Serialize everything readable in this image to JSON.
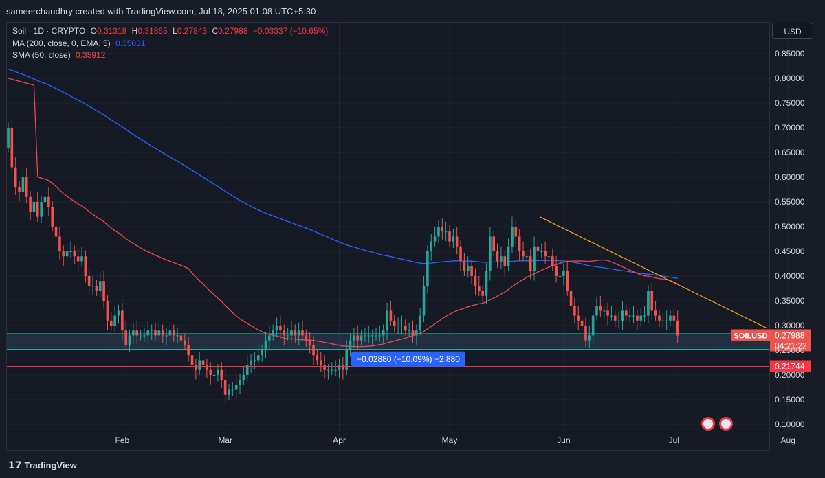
{
  "header": {
    "attribution": "sameerchaudhry created with TradingView.com, Jul 18, 2025 01:08 UTC+5:30"
  },
  "legend": {
    "symbol": "Soil · 1D · CRYPTO",
    "open_label": "O",
    "open": "0.31318",
    "high_label": "H",
    "high": "0.31865",
    "low_label": "L",
    "low": "0.27843",
    "close_label": "C",
    "close": "0.27988",
    "change": "−0.03337 (−10.65%)",
    "ma_label": "MA (200, close, 0, EMA, 5)",
    "ma_value": "0.35031",
    "sma_label": "SMA (50, close)",
    "sma_value": "0.35912"
  },
  "currency_button": "USD",
  "footer": {
    "brand": "TradingView",
    "brand_glyph": "17"
  },
  "chart_data": {
    "type": "candlestick",
    "symbol": "SOILUSD",
    "x_tick_labels": [
      "Feb",
      "Mar",
      "Apr",
      "May",
      "Jun",
      "Jul",
      "Aug"
    ],
    "y_tick_labels": [
      "0.10000",
      "0.15000",
      "0.20000",
      "0.25000",
      "0.30000",
      "0.35000",
      "0.40000",
      "0.45000",
      "0.50000",
      "0.55000",
      "0.60000",
      "0.65000",
      "0.70000",
      "0.75000",
      "0.80000",
      "0.85000"
    ],
    "ylim": [
      0.07,
      0.89
    ],
    "start_date": "2025-01-01",
    "last_price": 0.27988,
    "last_price_label": "0.27988",
    "countdown": "04:21:22",
    "support_line": 0.21744,
    "support_label": "0.21744",
    "zone": [
      0.252,
      0.2835
    ],
    "measure_label": "−0.02880 (−10.09%) −2,880",
    "closes": [
      0.7,
      0.62,
      0.58,
      0.57,
      0.6,
      0.56,
      0.53,
      0.55,
      0.52,
      0.55,
      0.56,
      0.54,
      0.5,
      0.48,
      0.45,
      0.44,
      0.45,
      0.45,
      0.44,
      0.43,
      0.44,
      0.4,
      0.38,
      0.38,
      0.37,
      0.39,
      0.35,
      0.31,
      0.3,
      0.32,
      0.33,
      0.29,
      0.26,
      0.28,
      0.29,
      0.28,
      0.28,
      0.28,
      0.29,
      0.29,
      0.28,
      0.29,
      0.28,
      0.28,
      0.29,
      0.28,
      0.28,
      0.27,
      0.26,
      0.24,
      0.22,
      0.21,
      0.23,
      0.22,
      0.21,
      0.2,
      0.2,
      0.21,
      0.19,
      0.16,
      0.17,
      0.17,
      0.18,
      0.19,
      0.2,
      0.22,
      0.23,
      0.23,
      0.24,
      0.25,
      0.27,
      0.28,
      0.29,
      0.3,
      0.29,
      0.28,
      0.28,
      0.29,
      0.28,
      0.29,
      0.28,
      0.27,
      0.26,
      0.24,
      0.23,
      0.22,
      0.21,
      0.21,
      0.21,
      0.21,
      0.22,
      0.21,
      0.25,
      0.27,
      0.28,
      0.27,
      0.28,
      0.28,
      0.28,
      0.28,
      0.28,
      0.28,
      0.29,
      0.33,
      0.31,
      0.3,
      0.3,
      0.3,
      0.29,
      0.29,
      0.28,
      0.29,
      0.32,
      0.38,
      0.45,
      0.47,
      0.48,
      0.5,
      0.49,
      0.49,
      0.47,
      0.48,
      0.46,
      0.43,
      0.41,
      0.42,
      0.4,
      0.38,
      0.37,
      0.36,
      0.41,
      0.48,
      0.45,
      0.43,
      0.44,
      0.42,
      0.46,
      0.5,
      0.48,
      0.45,
      0.44,
      0.44,
      0.41,
      0.46,
      0.45,
      0.45,
      0.44,
      0.44,
      0.42,
      0.4,
      0.4,
      0.41,
      0.37,
      0.34,
      0.32,
      0.31,
      0.3,
      0.27,
      0.28,
      0.32,
      0.34,
      0.33,
      0.33,
      0.32,
      0.32,
      0.31,
      0.31,
      0.33,
      0.32,
      0.32,
      0.32,
      0.31,
      0.32,
      0.32,
      0.37,
      0.33,
      0.32,
      0.31,
      0.31,
      0.31,
      0.32,
      0.31,
      0.27988
    ]
  },
  "colors": {
    "up": "#26a69a",
    "down": "#ef5350",
    "ma200": "#2962ff",
    "sma50": "#f0474f",
    "trend": "#f7a21b",
    "support": "#f23645",
    "zone": "#2b4159",
    "measure": "#2962ff"
  }
}
